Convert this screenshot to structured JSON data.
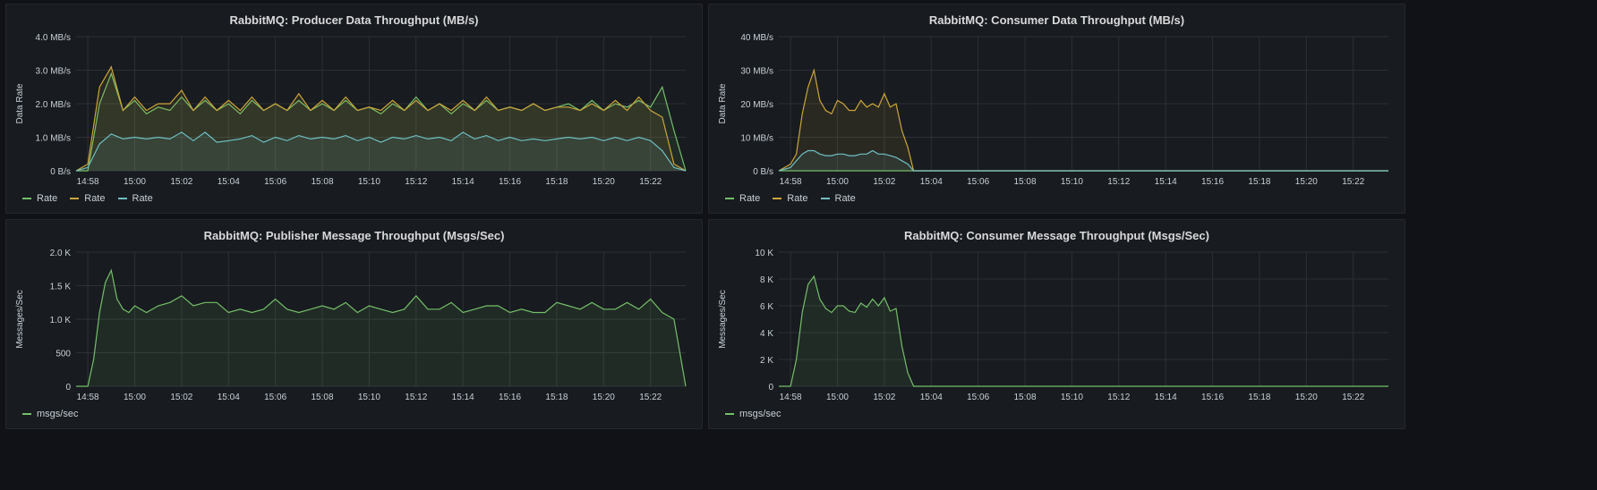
{
  "colors": {
    "green": "#73bf69",
    "yellow": "#cca53a",
    "blue": "#6fbfc4",
    "grid": "#2c3035",
    "text": "#c7d0d9"
  },
  "panels": [
    {
      "title": "RabbitMQ: Producer Data Throughput (MB/s)",
      "legend": [
        "Rate",
        "Rate",
        "Rate"
      ]
    },
    {
      "title": "RabbitMQ: Consumer Data Throughput (MB/s)",
      "legend": [
        "Rate",
        "Rate",
        "Rate"
      ]
    },
    {
      "title": "RabbitMQ: Publisher Message Throughput (Msgs/Sec)",
      "legend": [
        "msgs/sec"
      ]
    },
    {
      "title": "RabbitMQ: Consumer Message Throughput (Msgs/Sec)",
      "legend": [
        "msgs/sec"
      ]
    }
  ],
  "chart_data": [
    {
      "type": "area",
      "title": "RabbitMQ: Producer Data Throughput (MB/s)",
      "ylabel": "Data Rate",
      "ylim": [
        0,
        4
      ],
      "yticks": [
        0,
        1,
        2,
        3,
        4
      ],
      "ytick_labels": [
        "0 B/s",
        "1.0 MB/s",
        "2.0 MB/s",
        "3.0 MB/s",
        "4.0 MB/s"
      ],
      "x_domain": [
        "14:57.5",
        "15:23.5"
      ],
      "xtick_labels": [
        "14:58",
        "15:00",
        "15:02",
        "15:04",
        "15:06",
        "15:08",
        "15:10",
        "15:12",
        "15:14",
        "15:16",
        "15:18",
        "15:20",
        "15:22"
      ],
      "grid": true,
      "legend_position": "bottom-left",
      "series": [
        {
          "name": "Rate",
          "color": "green",
          "x": [
            "14:57.5",
            "14:58",
            "14:58.5",
            "14:59",
            "14:59.5",
            "15:00",
            "15:00.5",
            "15:01",
            "15:01.5",
            "15:02",
            "15:02.5",
            "15:03",
            "15:03.5",
            "15:04",
            "15:04.5",
            "15:05",
            "15:05.5",
            "15:06",
            "15:06.5",
            "15:07",
            "15:07.5",
            "15:08",
            "15:08.5",
            "15:09",
            "15:09.5",
            "15:10",
            "15:10.5",
            "15:11",
            "15:11.5",
            "15:12",
            "15:12.5",
            "15:13",
            "15:13.5",
            "15:14",
            "15:14.5",
            "15:15",
            "15:15.5",
            "15:16",
            "15:16.5",
            "15:17",
            "15:17.5",
            "15:18",
            "15:18.5",
            "15:19",
            "15:19.5",
            "15:20",
            "15:20.5",
            "15:21",
            "15:21.5",
            "15:22",
            "15:22.5",
            "15:23",
            "15:23.5"
          ],
          "values": [
            0,
            0,
            2.0,
            2.9,
            1.8,
            2.1,
            1.7,
            1.9,
            1.8,
            2.2,
            1.8,
            2.1,
            1.8,
            2.0,
            1.7,
            2.1,
            1.8,
            2.0,
            1.8,
            2.1,
            1.8,
            2.0,
            1.8,
            2.1,
            1.8,
            1.9,
            1.7,
            2.0,
            1.8,
            2.2,
            1.8,
            2.0,
            1.7,
            2.0,
            1.8,
            2.1,
            1.8,
            1.9,
            1.8,
            2.0,
            1.8,
            1.9,
            2.0,
            1.8,
            2.1,
            1.8,
            2.0,
            1.9,
            2.1,
            1.9,
            2.5,
            1.2,
            0
          ]
        },
        {
          "name": "Rate",
          "color": "yellow",
          "x": [
            "14:57.5",
            "14:58",
            "14:58.5",
            "14:59",
            "14:59.5",
            "15:00",
            "15:00.5",
            "15:01",
            "15:01.5",
            "15:02",
            "15:02.5",
            "15:03",
            "15:03.5",
            "15:04",
            "15:04.5",
            "15:05",
            "15:05.5",
            "15:06",
            "15:06.5",
            "15:07",
            "15:07.5",
            "15:08",
            "15:08.5",
            "15:09",
            "15:09.5",
            "15:10",
            "15:10.5",
            "15:11",
            "15:11.5",
            "15:12",
            "15:12.5",
            "15:13",
            "15:13.5",
            "15:14",
            "15:14.5",
            "15:15",
            "15:15.5",
            "15:16",
            "15:16.5",
            "15:17",
            "15:17.5",
            "15:18",
            "15:18.5",
            "15:19",
            "15:19.5",
            "15:20",
            "15:20.5",
            "15:21",
            "15:21.5",
            "15:22",
            "15:22.5",
            "15:23",
            "15:23.5"
          ],
          "values": [
            0,
            0.2,
            2.5,
            3.1,
            1.8,
            2.2,
            1.8,
            2.0,
            2.0,
            2.4,
            1.8,
            2.2,
            1.8,
            2.1,
            1.8,
            2.2,
            1.8,
            2.0,
            1.8,
            2.3,
            1.8,
            2.1,
            1.8,
            2.2,
            1.8,
            1.9,
            1.8,
            2.1,
            1.8,
            2.1,
            1.8,
            2.0,
            1.8,
            2.1,
            1.8,
            2.2,
            1.8,
            1.9,
            1.8,
            2.0,
            1.8,
            1.9,
            1.9,
            1.8,
            2.0,
            1.8,
            2.1,
            1.8,
            2.2,
            1.8,
            1.6,
            0.2,
            0
          ]
        },
        {
          "name": "Rate",
          "color": "blue",
          "x": [
            "14:57.5",
            "14:58",
            "14:58.5",
            "14:59",
            "14:59.5",
            "15:00",
            "15:00.5",
            "15:01",
            "15:01.5",
            "15:02",
            "15:02.5",
            "15:03",
            "15:03.5",
            "15:04",
            "15:04.5",
            "15:05",
            "15:05.5",
            "15:06",
            "15:06.5",
            "15:07",
            "15:07.5",
            "15:08",
            "15:08.5",
            "15:09",
            "15:09.5",
            "15:10",
            "15:10.5",
            "15:11",
            "15:11.5",
            "15:12",
            "15:12.5",
            "15:13",
            "15:13.5",
            "15:14",
            "15:14.5",
            "15:15",
            "15:15.5",
            "15:16",
            "15:16.5",
            "15:17",
            "15:17.5",
            "15:18",
            "15:18.5",
            "15:19",
            "15:19.5",
            "15:20",
            "15:20.5",
            "15:21",
            "15:21.5",
            "15:22",
            "15:22.5",
            "15:23",
            "15:23.5"
          ],
          "values": [
            0,
            0.1,
            0.8,
            1.1,
            0.95,
            1.0,
            0.95,
            1.0,
            0.95,
            1.15,
            0.9,
            1.15,
            0.85,
            0.9,
            0.95,
            1.05,
            0.85,
            1.0,
            0.9,
            1.05,
            0.95,
            1.0,
            0.95,
            1.05,
            0.9,
            1.0,
            0.85,
            1.0,
            0.95,
            1.05,
            0.95,
            1.0,
            0.9,
            1.15,
            0.95,
            1.05,
            0.9,
            1.0,
            0.9,
            0.95,
            0.9,
            0.95,
            1.0,
            0.95,
            1.0,
            0.9,
            1.0,
            0.9,
            1.0,
            0.9,
            0.6,
            0.1,
            0
          ]
        }
      ]
    },
    {
      "type": "area",
      "title": "RabbitMQ: Consumer Data Throughput (MB/s)",
      "ylabel": "Data Rate",
      "ylim": [
        0,
        40
      ],
      "yticks": [
        0,
        10,
        20,
        30,
        40
      ],
      "ytick_labels": [
        "0 B/s",
        "10 MB/s",
        "20 MB/s",
        "30 MB/s",
        "40 MB/s"
      ],
      "x_domain": [
        "14:57.5",
        "15:23.5"
      ],
      "xtick_labels": [
        "14:58",
        "15:00",
        "15:02",
        "15:04",
        "15:06",
        "15:08",
        "15:10",
        "15:12",
        "15:14",
        "15:16",
        "15:18",
        "15:20",
        "15:22"
      ],
      "grid": true,
      "legend_position": "bottom-left",
      "series": [
        {
          "name": "Rate",
          "color": "green",
          "x": [
            "14:57.5",
            "14:58",
            "14:58.5",
            "14:59",
            "14:59.5",
            "15:00",
            "15:00.5",
            "15:01",
            "15:01.5",
            "15:02",
            "15:02.5",
            "15:03",
            "15:03.5",
            "15:23.5"
          ],
          "values": [
            0,
            0,
            0,
            0,
            0,
            0,
            0,
            0,
            0,
            0,
            0,
            0,
            0,
            0
          ]
        },
        {
          "name": "Rate",
          "color": "yellow",
          "x": [
            "14:57.5",
            "14:58",
            "14:58.25",
            "14:58.5",
            "14:58.75",
            "14:59",
            "14:59.25",
            "14:59.5",
            "14:59.75",
            "15:00",
            "15:00.25",
            "15:00.5",
            "15:00.75",
            "15:01",
            "15:01.25",
            "15:01.5",
            "15:01.75",
            "15:02",
            "15:02.25",
            "15:02.5",
            "15:02.75",
            "15:03",
            "15:03.25",
            "15:23.5"
          ],
          "values": [
            0,
            2,
            5,
            17,
            25,
            30,
            21,
            18,
            17,
            21,
            20,
            18,
            18,
            21,
            19,
            20,
            19,
            23,
            19,
            20,
            12,
            7,
            0,
            0
          ]
        },
        {
          "name": "Rate",
          "color": "blue",
          "x": [
            "14:57.5",
            "14:58",
            "14:58.25",
            "14:58.5",
            "14:58.75",
            "14:59",
            "14:59.25",
            "14:59.5",
            "14:59.75",
            "15:00",
            "15:00.25",
            "15:00.5",
            "15:00.75",
            "15:01",
            "15:01.25",
            "15:01.5",
            "15:01.75",
            "15:02",
            "15:02.25",
            "15:02.5",
            "15:02.75",
            "15:03",
            "15:03.25",
            "15:23.5"
          ],
          "values": [
            0,
            1,
            3,
            5,
            6,
            6,
            5,
            4.5,
            4.5,
            5,
            5,
            4.5,
            4.5,
            5,
            5,
            6,
            5,
            5,
            4.5,
            4,
            3,
            2,
            0,
            0
          ]
        }
      ]
    },
    {
      "type": "area",
      "title": "RabbitMQ: Publisher Message Throughput (Msgs/Sec)",
      "ylabel": "Messages/Sec",
      "ylim": [
        0,
        2000
      ],
      "yticks": [
        0,
        500,
        1000,
        1500,
        2000
      ],
      "ytick_labels": [
        "0",
        "500",
        "1.0 K",
        "1.5 K",
        "2.0 K"
      ],
      "x_domain": [
        "14:57.5",
        "15:23.5"
      ],
      "xtick_labels": [
        "14:58",
        "15:00",
        "15:02",
        "15:04",
        "15:06",
        "15:08",
        "15:10",
        "15:12",
        "15:14",
        "15:16",
        "15:18",
        "15:20",
        "15:22"
      ],
      "grid": true,
      "legend_position": "bottom-left",
      "series": [
        {
          "name": "msgs/sec",
          "color": "green",
          "x": [
            "14:57.5",
            "14:58",
            "14:58.25",
            "14:58.5",
            "14:58.75",
            "14:59",
            "14:59.25",
            "14:59.5",
            "14:59.75",
            "15:00",
            "15:00.5",
            "15:01",
            "15:01.5",
            "15:02",
            "15:02.5",
            "15:03",
            "15:03.5",
            "15:04",
            "15:04.5",
            "15:05",
            "15:05.5",
            "15:06",
            "15:06.5",
            "15:07",
            "15:07.5",
            "15:08",
            "15:08.5",
            "15:09",
            "15:09.5",
            "15:10",
            "15:10.5",
            "15:11",
            "15:11.5",
            "15:12",
            "15:12.5",
            "15:13",
            "15:13.5",
            "15:14",
            "15:14.5",
            "15:15",
            "15:15.5",
            "15:16",
            "15:16.5",
            "15:17",
            "15:17.5",
            "15:18",
            "15:18.5",
            "15:19",
            "15:19.5",
            "15:20",
            "15:20.5",
            "15:21",
            "15:21.5",
            "15:22",
            "15:22.5",
            "15:23",
            "15:23.25",
            "15:23.5"
          ],
          "values": [
            0,
            0,
            400,
            1100,
            1550,
            1730,
            1300,
            1150,
            1100,
            1200,
            1100,
            1200,
            1250,
            1350,
            1200,
            1250,
            1250,
            1100,
            1150,
            1100,
            1150,
            1300,
            1150,
            1100,
            1150,
            1200,
            1150,
            1250,
            1100,
            1200,
            1150,
            1100,
            1150,
            1350,
            1150,
            1150,
            1250,
            1100,
            1150,
            1200,
            1200,
            1100,
            1150,
            1100,
            1100,
            1250,
            1200,
            1150,
            1250,
            1150,
            1150,
            1250,
            1150,
            1300,
            1100,
            1000,
            500,
            0
          ]
        }
      ]
    },
    {
      "type": "area",
      "title": "RabbitMQ: Consumer Message Throughput (Msgs/Sec)",
      "ylabel": "Messages/Sec",
      "ylim": [
        0,
        10000
      ],
      "yticks": [
        0,
        2000,
        4000,
        6000,
        8000,
        10000
      ],
      "ytick_labels": [
        "0",
        "2 K",
        "4 K",
        "6 K",
        "8 K",
        "10 K"
      ],
      "x_domain": [
        "14:57.5",
        "15:23.5"
      ],
      "xtick_labels": [
        "14:58",
        "15:00",
        "15:02",
        "15:04",
        "15:06",
        "15:08",
        "15:10",
        "15:12",
        "15:14",
        "15:16",
        "15:18",
        "15:20",
        "15:22"
      ],
      "grid": true,
      "legend_position": "bottom-left",
      "series": [
        {
          "name": "msgs/sec",
          "color": "green",
          "x": [
            "14:57.5",
            "14:58",
            "14:58.25",
            "14:58.5",
            "14:58.75",
            "14:59",
            "14:59.25",
            "14:59.5",
            "14:59.75",
            "15:00",
            "15:00.25",
            "15:00.5",
            "15:00.75",
            "15:01",
            "15:01.25",
            "15:01.5",
            "15:01.75",
            "15:02",
            "15:02.25",
            "15:02.5",
            "15:02.75",
            "15:03",
            "15:03.25",
            "15:23.5"
          ],
          "values": [
            0,
            0,
            2000,
            5500,
            7600,
            8200,
            6500,
            5800,
            5500,
            6000,
            6000,
            5600,
            5500,
            6200,
            5900,
            6500,
            6000,
            6600,
            5600,
            5800,
            3000,
            1000,
            0,
            0
          ]
        }
      ]
    }
  ]
}
